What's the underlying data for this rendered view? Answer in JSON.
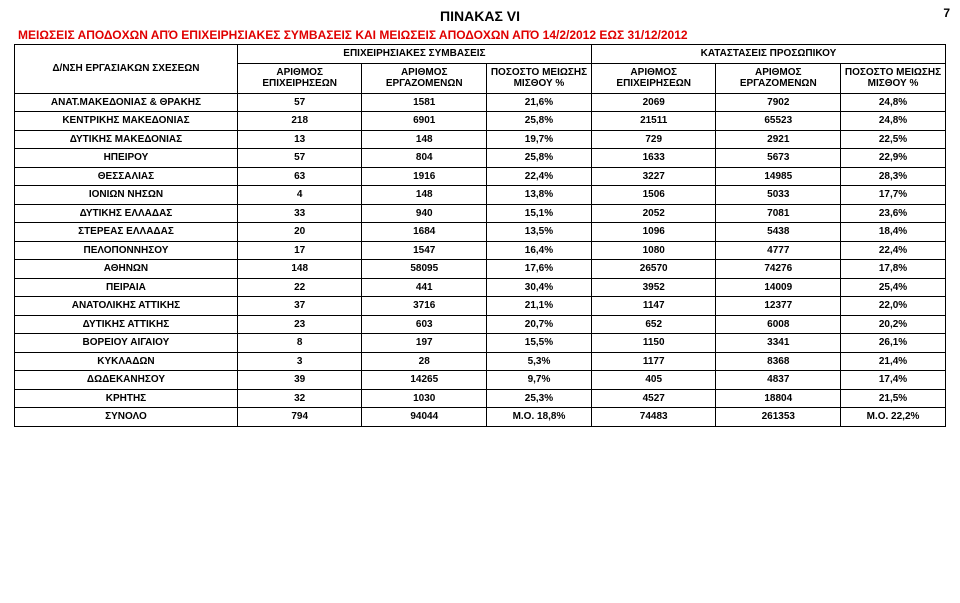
{
  "page_number": "7",
  "title_top": "ΠΙΝΑΚΑΣ VI",
  "title_red": "ΜΕΙΩΣΕΙΣ ΑΠΟΔΟΧΩΝ  ΑΠΌ ΕΠΙΧΕΙΡΗΣΙΑΚΕΣ ΣΥΜΒΑΣΕΙΣ ΚΑΙ ΜΕΙΩΣΕΙΣ ΑΠΟΔΟΧΩΝ ΑΠΌ 14/2/2012 ΕΩΣ 31/12/2012",
  "header": {
    "rowhead": "Δ/ΝΣΗ ΕΡΓΑΣΙΑΚΩΝ ΣΧΕΣΕΩΝ",
    "group_left": "ΕΠΙΧΕΙΡΗΣΙΑΚΕΣ ΣΥΜΒΑΣΕΙΣ",
    "group_right": "ΚΑΤΑΣΤΑΣΕΙΣ ΠΡΟΣΩΠΙΚΟΥ",
    "c1": "ΑΡΙΘΜΟΣ ΕΠΙΧΕΙΡΗΣΕΩΝ",
    "c2": "ΑΡΙΘΜΟΣ ΕΡΓΑΖΟΜΕΝΩΝ",
    "c3": "ΠΟΣΟΣΤΟ ΜΕΙΩΣΗΣ ΜΙΣΘΟΥ %",
    "c4": "ΑΡΙΘΜΟΣ ΕΠΙΧΕΙΡΗΣΕΩΝ",
    "c5": "ΑΡΙΘΜΟΣ ΕΡΓΑΖΟΜΕΝΩΝ",
    "c6": "ΠΟΣΟΣΤΟ ΜΕΙΩΣΗΣ ΜΙΣΘΟΥ %"
  },
  "rows": [
    {
      "label": "ΑΝΑΤ.ΜΑΚΕΔΟΝΙΑΣ & ΘΡΑΚΗΣ",
      "a": "57",
      "b": "1581",
      "c": "21,6%",
      "d": "2069",
      "e": "7902",
      "f": "24,8%"
    },
    {
      "label": "ΚΕΝΤΡΙΚΗΣ ΜΑΚΕΔΟΝΙΑΣ",
      "a": "218",
      "b": "6901",
      "c": "25,8%",
      "d": "21511",
      "e": "65523",
      "f": "24,8%"
    },
    {
      "label": "ΔΥΤΙΚΗΣ ΜΑΚΕΔΟΝΙΑΣ",
      "a": "13",
      "b": "148",
      "c": "19,7%",
      "d": "729",
      "e": "2921",
      "f": "22,5%"
    },
    {
      "label": "ΗΠΕΙΡΟΥ",
      "a": "57",
      "b": "804",
      "c": "25,8%",
      "d": "1633",
      "e": "5673",
      "f": "22,9%"
    },
    {
      "label": "ΘΕΣΣΑΛΙΑΣ",
      "a": "63",
      "b": "1916",
      "c": "22,4%",
      "d": "3227",
      "e": "14985",
      "f": "28,3%"
    },
    {
      "label": "ΙΟΝΙΩΝ ΝΗΣΩΝ",
      "a": "4",
      "b": "148",
      "c": "13,8%",
      "d": "1506",
      "e": "5033",
      "f": "17,7%"
    },
    {
      "label": "ΔΥΤΙΚΗΣ ΕΛΛΑΔΑΣ",
      "a": "33",
      "b": "940",
      "c": "15,1%",
      "d": "2052",
      "e": "7081",
      "f": "23,6%"
    },
    {
      "label": "ΣΤΕΡΕΑΣ ΕΛΛΑΔΑΣ",
      "a": "20",
      "b": "1684",
      "c": "13,5%",
      "d": "1096",
      "e": "5438",
      "f": "18,4%"
    },
    {
      "label": "ΠΕΛΟΠΟΝΝΗΣΟΥ",
      "a": "17",
      "b": "1547",
      "c": "16,4%",
      "d": "1080",
      "e": "4777",
      "f": "22,4%"
    },
    {
      "label": "ΑΘΗΝΩΝ",
      "a": "148",
      "b": "58095",
      "c": "17,6%",
      "d": "26570",
      "e": "74276",
      "f": "17,8%"
    },
    {
      "label": "ΠΕΙΡΑΙΑ",
      "a": "22",
      "b": "441",
      "c": "30,4%",
      "d": "3952",
      "e": "14009",
      "f": "25,4%"
    },
    {
      "label": "ΑΝΑΤΟΛΙΚΗΣ ΑΤΤΙΚΗΣ",
      "a": "37",
      "b": "3716",
      "c": "21,1%",
      "d": "1147",
      "e": "12377",
      "f": "22,0%"
    },
    {
      "label": "ΔΥΤΙΚΗΣ ΑΤΤΙΚΗΣ",
      "a": "23",
      "b": "603",
      "c": "20,7%",
      "d": "652",
      "e": "6008",
      "f": "20,2%"
    },
    {
      "label": "ΒΟΡΕΙΟΥ ΑΙΓΑΙΟΥ",
      "a": "8",
      "b": "197",
      "c": "15,5%",
      "d": "1150",
      "e": "3341",
      "f": "26,1%"
    },
    {
      "label": "ΚΥΚΛΑΔΩΝ",
      "a": "3",
      "b": "28",
      "c": "5,3%",
      "d": "1177",
      "e": "8368",
      "f": "21,4%"
    },
    {
      "label": "ΔΩΔΕΚΑΝΗΣΟΥ",
      "a": "39",
      "b": "14265",
      "c": "9,7%",
      "d": "405",
      "e": "4837",
      "f": "17,4%"
    },
    {
      "label": "ΚΡΗΤΗΣ",
      "a": "32",
      "b": "1030",
      "c": "25,3%",
      "d": "4527",
      "e": "18804",
      "f": "21,5%"
    }
  ],
  "total": {
    "label": "ΣΥΝΟΛΟ",
    "a": "794",
    "b": "94044",
    "c": "Μ.Ο. 18,8%",
    "d": "74483",
    "e": "261353",
    "f": "Μ.Ο. 22,2%"
  },
  "colors": {
    "red": "#e00000",
    "border": "#000000",
    "bg": "#ffffff"
  }
}
